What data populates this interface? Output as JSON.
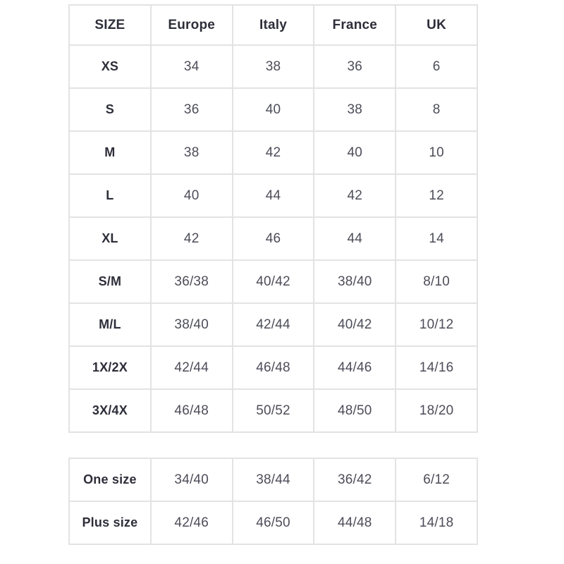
{
  "chart_data": {
    "type": "table",
    "columns": [
      "SIZE",
      "Europe",
      "Italy",
      "France",
      "UK"
    ],
    "rows": [
      {
        "label": "XS",
        "values": [
          "34",
          "38",
          "36",
          "6"
        ]
      },
      {
        "label": "S",
        "values": [
          "36",
          "40",
          "38",
          "8"
        ]
      },
      {
        "label": "M",
        "values": [
          "38",
          "42",
          "40",
          "10"
        ]
      },
      {
        "label": "L",
        "values": [
          "40",
          "44",
          "42",
          "12"
        ]
      },
      {
        "label": "XL",
        "values": [
          "42",
          "46",
          "44",
          "14"
        ]
      },
      {
        "label": "S/M",
        "values": [
          "36/38",
          "40/42",
          "38/40",
          "8/10"
        ]
      },
      {
        "label": "M/L",
        "values": [
          "38/40",
          "42/44",
          "40/42",
          "10/12"
        ]
      },
      {
        "label": "1X/2X",
        "values": [
          "42/44",
          "46/48",
          "44/46",
          "14/16"
        ]
      },
      {
        "label": "3X/4X",
        "values": [
          "46/48",
          "50/52",
          "48/50",
          "18/20"
        ]
      }
    ],
    "secondary_rows": [
      {
        "label": "One size",
        "values": [
          "34/40",
          "38/44",
          "36/42",
          "6/12"
        ]
      },
      {
        "label": "Plus size",
        "values": [
          "42/46",
          "46/50",
          "44/48",
          "14/18"
        ]
      }
    ],
    "layout_hints": {
      "grid": "on",
      "two_tables_stacked": true
    }
  },
  "colors": {
    "border": "#e3e3e3",
    "header_text": "#2e2e3a",
    "cell_text": "#4d4d59",
    "background": "#ffffff"
  }
}
